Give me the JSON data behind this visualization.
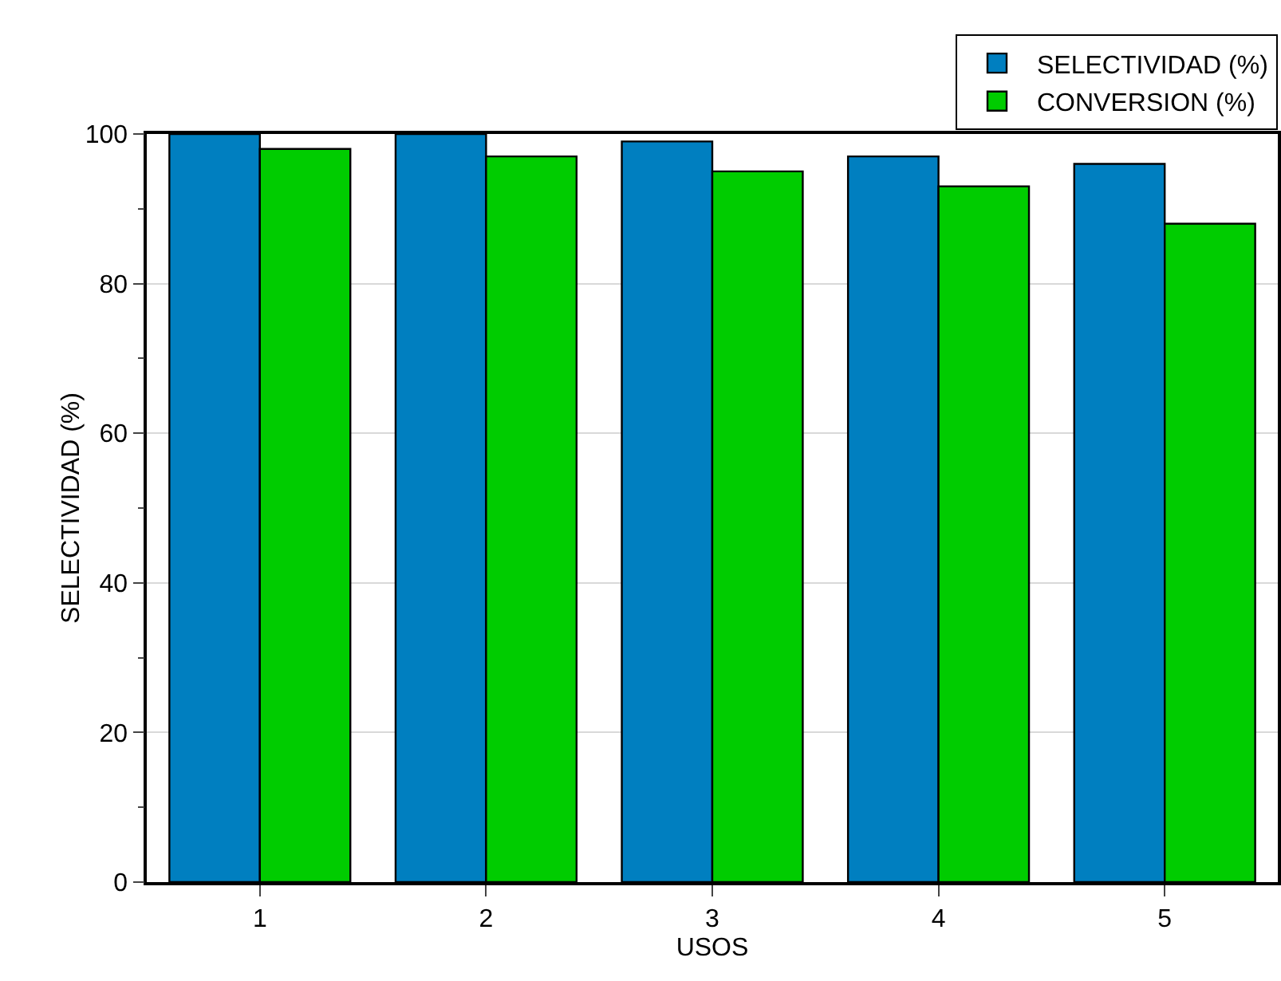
{
  "chart_data": {
    "type": "bar",
    "xlabel": "USOS",
    "ylabel": "SELECTIVIDAD (%)",
    "categories": [
      "1",
      "2",
      "3",
      "4",
      "5"
    ],
    "series": [
      {
        "name": "SELECTIVIDAD (%)",
        "color": "#007fc0",
        "values": [
          100,
          100,
          99,
          97,
          96
        ]
      },
      {
        "name": "CONVERSION (%)",
        "color": "#00cc00",
        "values": [
          98,
          97,
          95,
          93,
          88
        ]
      }
    ],
    "ylim": [
      0,
      100
    ],
    "yticks": [
      0,
      20,
      40,
      60,
      80,
      100
    ],
    "grid": "y",
    "legend": "top right"
  }
}
